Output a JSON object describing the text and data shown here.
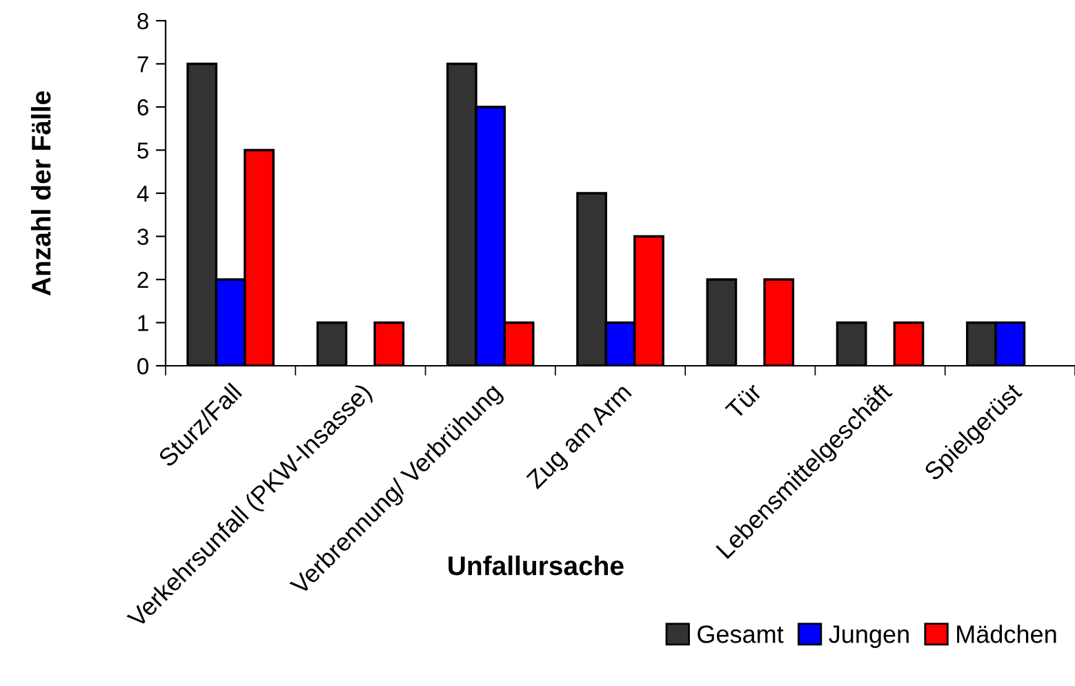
{
  "chart_data": {
    "type": "bar",
    "xlabel": "Unfallursache",
    "ylabel": "Anzahl der Fälle",
    "categories": [
      "Sturz/Fall",
      "Verkehrsunfall (PKW-Insasse)",
      "Verbrennung/ Verbrühung",
      "Zug am Arm",
      "Tür",
      "Lebensmittelgeschäft",
      "Spielgerüst"
    ],
    "series": [
      {
        "name": "Gesamt",
        "color": "#333333",
        "values": [
          7,
          1,
          7,
          4,
          2,
          1,
          1
        ]
      },
      {
        "name": "Jungen",
        "color": "#0000ff",
        "values": [
          2,
          null,
          6,
          1,
          null,
          null,
          1
        ]
      },
      {
        "name": "Mädchen",
        "color": "#ff0000",
        "values": [
          5,
          1,
          1,
          3,
          2,
          1,
          null
        ]
      }
    ],
    "ylim": [
      0,
      8
    ],
    "yticks": [
      0,
      1,
      2,
      3,
      4,
      5,
      6,
      7,
      8
    ],
    "grid": false,
    "legend": "bottom right"
  }
}
